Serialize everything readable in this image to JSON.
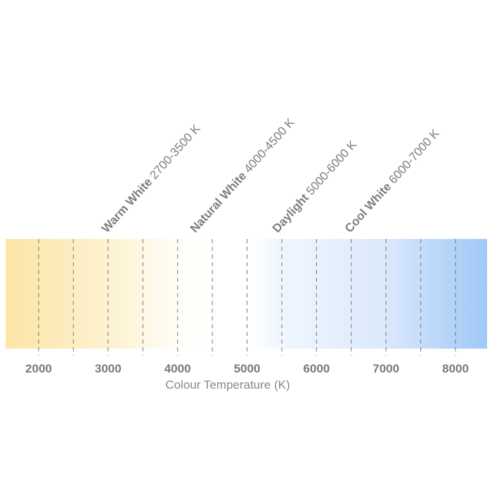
{
  "chart_data": {
    "type": "color-scale",
    "xlabel": "Colour Temperature (K)",
    "xlim": [
      1525,
      8455
    ],
    "ticks": [
      2000,
      3000,
      4000,
      5000,
      6000,
      7000,
      8000
    ],
    "tick_labels": [
      "2000",
      "3000",
      "4000",
      "5000",
      "6000",
      "7000",
      "8000"
    ],
    "dashed_gridlines": [
      2000,
      2500,
      3000,
      3500,
      4000,
      4500,
      5000,
      5500,
      6000,
      6500,
      7000,
      7500,
      8000
    ],
    "gradient": [
      {
        "k": 1525,
        "color": "#fde6a6"
      },
      {
        "k": 2000,
        "color": "#fce9b3"
      },
      {
        "k": 3000,
        "color": "#fdf2d0"
      },
      {
        "k": 3500,
        "color": "#fef7e3"
      },
      {
        "k": 4000,
        "color": "#fffdf7"
      },
      {
        "k": 4500,
        "color": "#ffffff"
      },
      {
        "k": 5000,
        "color": "#ffffff"
      },
      {
        "k": 5500,
        "color": "#f0f6ff"
      },
      {
        "k": 6000,
        "color": "#e9f2fe"
      },
      {
        "k": 7000,
        "color": "#dbe9fc"
      },
      {
        "k": 7500,
        "color": "#c6ddfa"
      },
      {
        "k": 8455,
        "color": "#9fc8f8"
      }
    ],
    "ranges": [
      {
        "name": "Warm White",
        "range": "2700-3500 K"
      },
      {
        "name": "Natural White",
        "range": "4000-4500 K"
      },
      {
        "name": "Daylight",
        "range": "5000-6000 K"
      },
      {
        "name": "Cool White",
        "range": "6000-7000 K"
      }
    ]
  }
}
